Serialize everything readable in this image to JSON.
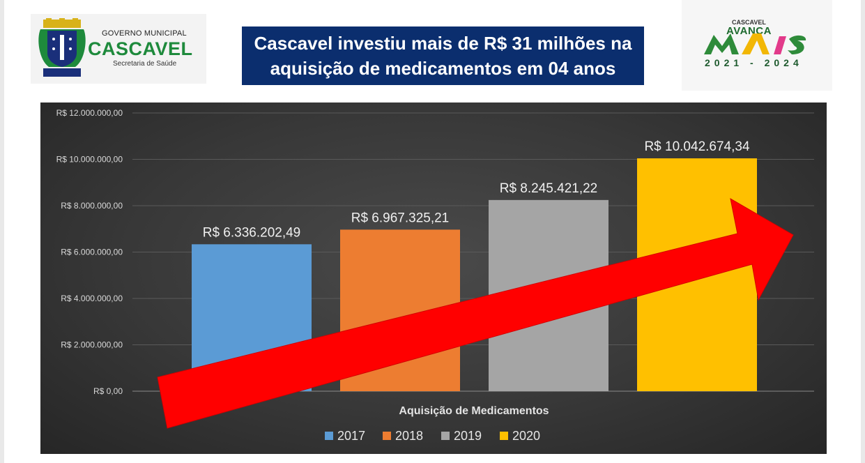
{
  "header": {
    "left_logo": {
      "government": "GOVERNO MUNICIPAL",
      "city": "CASCAVEL",
      "department": "Secretaria de Saúde",
      "crest_label": "CASCAVEL"
    },
    "title_line1": "Cascavel investiu mais de R$ 31 milhões na",
    "title_line2": "aquisição de medicamentos em 04 anos",
    "right_logo": {
      "small": "CASCAVEL",
      "big": "AVANÇA",
      "mark": "MAIS",
      "years": "2021 - 2024"
    }
  },
  "colors": {
    "title_bg": "#0b2e6e",
    "arrow": "#ff0000"
  },
  "chart_data": {
    "type": "bar",
    "xlabel": "Aquisição de Medicamentos",
    "ylim": [
      0,
      12000000
    ],
    "y_ticks": [
      0,
      2000000,
      4000000,
      6000000,
      8000000,
      10000000,
      12000000
    ],
    "y_tick_labels": [
      "R$ 0,00",
      "R$ 2.000.000,00",
      "R$ 4.000.000,00",
      "R$ 6.000.000,00",
      "R$ 8.000.000,00",
      "R$ 10.000.000,00",
      "R$ 12.000.000,00"
    ],
    "grid": true,
    "legend_position": "bottom",
    "series": [
      {
        "name": "2017",
        "value": 6336202.49,
        "label": "R$ 6.336.202,49",
        "color": "#5b9bd5"
      },
      {
        "name": "2018",
        "value": 6967325.21,
        "label": "R$ 6.967.325,21",
        "color": "#ed7d31"
      },
      {
        "name": "2019",
        "value": 8245421.22,
        "label": "R$ 8.245.421,22",
        "color": "#a5a5a5"
      },
      {
        "name": "2020",
        "value": 10042674.34,
        "label": "R$ 10.042.674,34",
        "color": "#ffc000"
      }
    ],
    "annotation": "red upward arrow"
  }
}
